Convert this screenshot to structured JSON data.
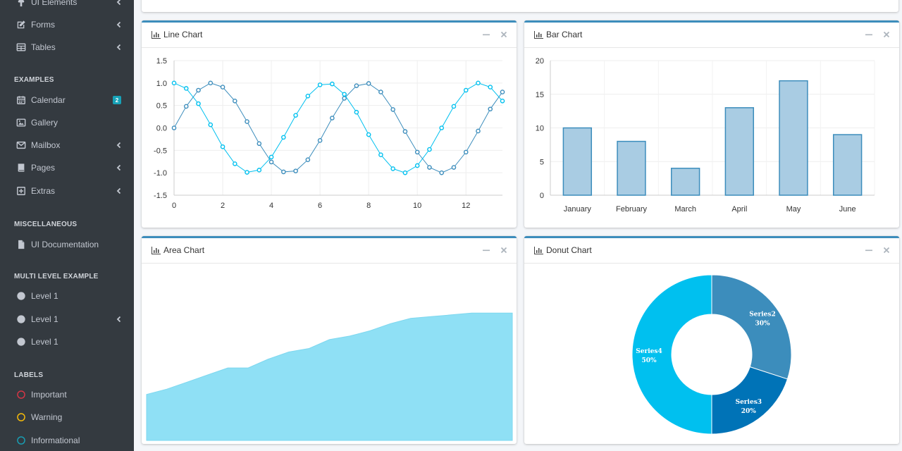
{
  "sidebar": {
    "items_top": [
      {
        "label": "UI Elements",
        "icon": "tree-icon",
        "chevron": true
      },
      {
        "label": "Forms",
        "icon": "edit-icon",
        "chevron": true
      },
      {
        "label": "Tables",
        "icon": "table-icon",
        "chevron": true
      }
    ],
    "examples_header": "EXAMPLES",
    "examples": [
      {
        "label": "Calendar",
        "icon": "calendar-icon",
        "badge": "2"
      },
      {
        "label": "Gallery",
        "icon": "image-icon"
      },
      {
        "label": "Mailbox",
        "icon": "envelope-icon",
        "chevron": true
      },
      {
        "label": "Pages",
        "icon": "book-icon",
        "chevron": true
      },
      {
        "label": "Extras",
        "icon": "plus-square-icon",
        "chevron": true
      }
    ],
    "misc_header": "MISCELLANEOUS",
    "misc": [
      {
        "label": "UI Documentation",
        "icon": "file-icon"
      }
    ],
    "multi_header": "MULTI LEVEL EXAMPLE",
    "multi": [
      {
        "label": "Level 1",
        "icon": "circle-icon"
      },
      {
        "label": "Level 1",
        "icon": "circle-icon",
        "chevron": true
      },
      {
        "label": "Level 1",
        "icon": "circle-icon"
      }
    ],
    "labels_header": "LABELS",
    "labels": [
      {
        "label": "Important",
        "icon": "circle-outline-icon",
        "color": "#dc3545"
      },
      {
        "label": "Warning",
        "icon": "circle-outline-icon",
        "color": "#ffc107"
      },
      {
        "label": "Informational",
        "icon": "circle-outline-icon",
        "color": "#17a2b8"
      }
    ]
  },
  "cards": {
    "line": {
      "title": "Line Chart",
      "icon": "bar-chart-icon"
    },
    "bar": {
      "title": "Bar Chart",
      "icon": "bar-chart-icon"
    },
    "area": {
      "title": "Area Chart",
      "icon": "bar-chart-icon"
    },
    "donut": {
      "title": "Donut Chart",
      "icon": "bar-chart-icon"
    }
  },
  "colors": {
    "accent": "#3c8dbc",
    "sidebar_bg": "#343a40",
    "line_sin": "#3c8dbc",
    "line_cos": "#00c0ef",
    "bar_fill": "#a9cce3",
    "bar_stroke": "#3c8dbc",
    "area_fill": "#8fe0f5"
  },
  "chart_data": [
    {
      "type": "line",
      "title": "Line Chart",
      "xlim": [
        0,
        13.5
      ],
      "ylim": [
        -1.5,
        1.5
      ],
      "xticks": [
        0,
        2,
        4,
        6,
        8,
        10,
        12
      ],
      "yticks": [
        1.5,
        1.0,
        0.5,
        0.0,
        -0.5,
        -1.0,
        -1.5
      ],
      "ytick_labels": [
        "1.5",
        "1.0",
        "0.5",
        "0.0",
        "-0.5",
        "-1.0",
        "-1.5"
      ],
      "grid": true,
      "series": [
        {
          "color": "#3c8dbc",
          "x": [
            0,
            0.5,
            1,
            1.5,
            2,
            2.5,
            3,
            3.5,
            4,
            4.5,
            5,
            5.5,
            6,
            6.5,
            7,
            7.5,
            8,
            8.5,
            9,
            9.5,
            10,
            10.5,
            11,
            11.5,
            12,
            12.5,
            13,
            13.5
          ],
          "y": [
            0,
            0.48,
            0.84,
            1.0,
            0.91,
            0.6,
            0.14,
            -0.35,
            -0.76,
            -0.98,
            -0.96,
            -0.71,
            -0.28,
            0.22,
            0.66,
            0.94,
            0.99,
            0.8,
            0.41,
            -0.08,
            -0.54,
            -0.88,
            -1.0,
            -0.88,
            -0.54,
            -0.07,
            0.42,
            0.8
          ]
        },
        {
          "color": "#00c0ef",
          "x": [
            0,
            0.5,
            1,
            1.5,
            2,
            2.5,
            3,
            3.5,
            4,
            4.5,
            5,
            5.5,
            6,
            6.5,
            7,
            7.5,
            8,
            8.5,
            9,
            9.5,
            10,
            10.5,
            11,
            11.5,
            12,
            12.5,
            13,
            13.5
          ],
          "y": [
            1.0,
            0.88,
            0.54,
            0.07,
            -0.42,
            -0.8,
            -0.99,
            -0.94,
            -0.65,
            -0.21,
            0.28,
            0.71,
            0.96,
            0.98,
            0.75,
            0.35,
            -0.15,
            -0.6,
            -0.91,
            -1.0,
            -0.84,
            -0.48,
            0.0,
            0.48,
            0.84,
            1.0,
            0.91,
            0.6
          ]
        }
      ]
    },
    {
      "type": "bar",
      "title": "Bar Chart",
      "categories": [
        "January",
        "February",
        "March",
        "April",
        "May",
        "June"
      ],
      "values": [
        10,
        8,
        4,
        13,
        17,
        9
      ],
      "ylim": [
        0,
        20
      ],
      "yticks": [
        0,
        5,
        10,
        15,
        20
      ],
      "grid": true
    },
    {
      "type": "area",
      "title": "Area Chart",
      "values": [
        0.26,
        0.29,
        0.33,
        0.37,
        0.41,
        0.41,
        0.46,
        0.5,
        0.52,
        0.57,
        0.59,
        0.62,
        0.66,
        0.69,
        0.7,
        0.71,
        0.72,
        0.72,
        0.72
      ],
      "ylim": [
        0,
        1
      ]
    },
    {
      "type": "pie",
      "title": "Donut Chart",
      "donut": true,
      "slices": [
        {
          "label": "Series2",
          "value": 30,
          "pct": "30%",
          "color": "#3c8dbc"
        },
        {
          "label": "Series3",
          "value": 20,
          "pct": "20%",
          "color": "#0073b7"
        },
        {
          "label": "Series4",
          "value": 50,
          "pct": "50%",
          "color": "#00c0ef"
        }
      ]
    }
  ]
}
